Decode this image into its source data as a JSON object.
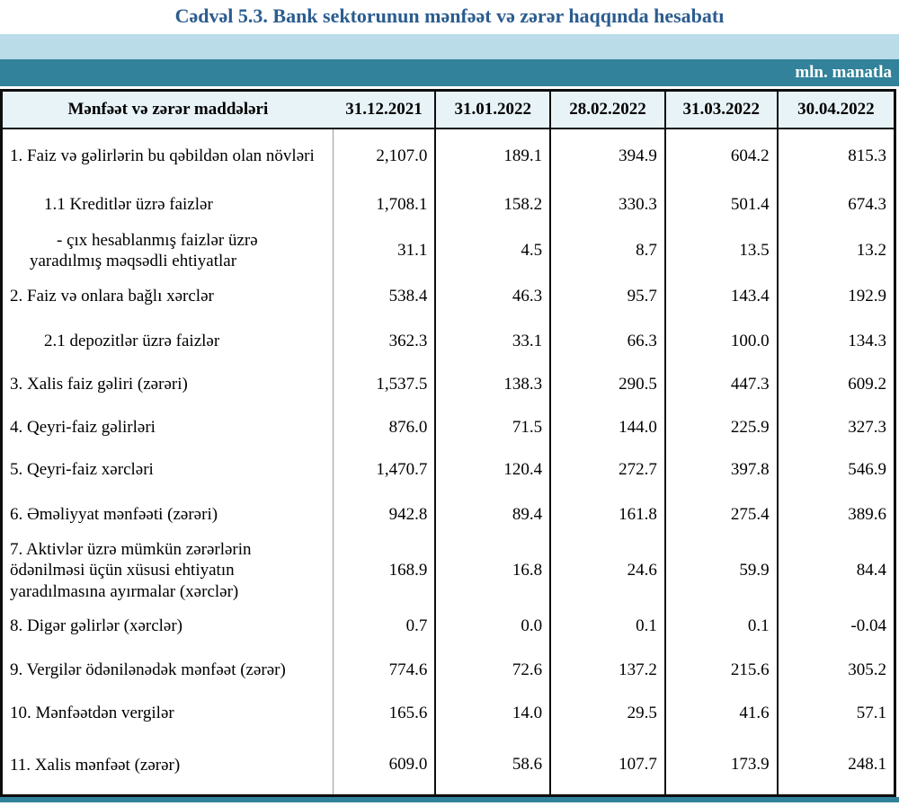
{
  "title": "Cədvəl 5.3. Bank sektorunun mənfəət və zərər haqqında hesabatı",
  "unit_label": "mln. manatla",
  "table": {
    "header": [
      "Mənfəət və zərər maddələri",
      "31.12.2021",
      "31.01.2022",
      "28.02.2022",
      "31.03.2022",
      "30.04.2022"
    ],
    "rows": [
      {
        "label": "1. Faiz və gəlirlərin bu qəbildən olan növləri",
        "indent": 0,
        "values": [
          "2,107.0",
          "189.1",
          "394.9",
          "604.2",
          "815.3"
        ]
      },
      {
        "label": "1.1 Kreditlər üzrə faizlər",
        "indent": 1,
        "values": [
          "1,708.1",
          "158.2",
          "330.3",
          "501.4",
          "674.3"
        ]
      },
      {
        "label": "-  çıx hesablanmış faizlər üzrə yaradılmış məqsədli ehtiyatlar",
        "indent": 2,
        "values": [
          "31.1",
          "4.5",
          "8.7",
          "13.5",
          "13.2"
        ]
      },
      {
        "label": "2. Faiz və onlara bağlı xərclər",
        "indent": 0,
        "values": [
          "538.4",
          "46.3",
          "95.7",
          "143.4",
          "192.9"
        ]
      },
      {
        "label": "2.1 depozitlər üzrə faizlər",
        "indent": 1,
        "values": [
          "362.3",
          "33.1",
          "66.3",
          "100.0",
          "134.3"
        ]
      },
      {
        "label": "3. Xalis faiz gəliri (zərəri)",
        "indent": 0,
        "values": [
          "1,537.5",
          "138.3",
          "290.5",
          "447.3",
          "609.2"
        ]
      },
      {
        "label": "4. Qeyri-faiz gəlirləri",
        "indent": 0,
        "values": [
          "876.0",
          "71.5",
          "144.0",
          "225.9",
          "327.3"
        ]
      },
      {
        "label": "5. Qeyri-faiz xərcləri",
        "indent": 0,
        "values": [
          "1,470.7",
          "120.4",
          "272.7",
          "397.8",
          "546.9"
        ]
      },
      {
        "label": "6. Əməliyyat mənfəəti (zərəri)",
        "indent": 0,
        "values": [
          "942.8",
          "89.4",
          "161.8",
          "275.4",
          "389.6"
        ]
      },
      {
        "label": "7. Aktivlər üzrə mümkün zərərlərin ödənilməsi üçün xüsusi ehtiyatın yaradılmasına ayırmalar (xərclər)",
        "indent": 0,
        "values": [
          "168.9",
          "16.8",
          "24.6",
          "59.9",
          "84.4"
        ]
      },
      {
        "label": "8. Digər gəlirlər (xərclər)",
        "indent": 0,
        "values": [
          "0.7",
          "0.0",
          "0.1",
          "0.1",
          "-0.04"
        ]
      },
      {
        "label": "9. Vergilər ödənilənədək mənfəət (zərər)",
        "indent": 0,
        "values": [
          "774.6",
          "72.6",
          "137.2",
          "215.6",
          "305.2"
        ]
      },
      {
        "label": "10. Mənfəətdən vergilər",
        "indent": 0,
        "values": [
          "165.6",
          "14.0",
          "29.5",
          "41.6",
          "57.1"
        ]
      },
      {
        "label": "11. Xalis mənfəət (zərər)",
        "indent": 0,
        "values": [
          "609.0",
          "58.6",
          "107.7",
          "173.9",
          "248.1"
        ]
      }
    ]
  },
  "colors": {
    "title_text": "#2b5c8f",
    "band_light_blue": "#b9dce8",
    "band_teal": "#31829a",
    "header_row_bg": "#e8f3f8",
    "grid_black": "#0d0d0d",
    "grid_gray": "#9b9b9b"
  }
}
